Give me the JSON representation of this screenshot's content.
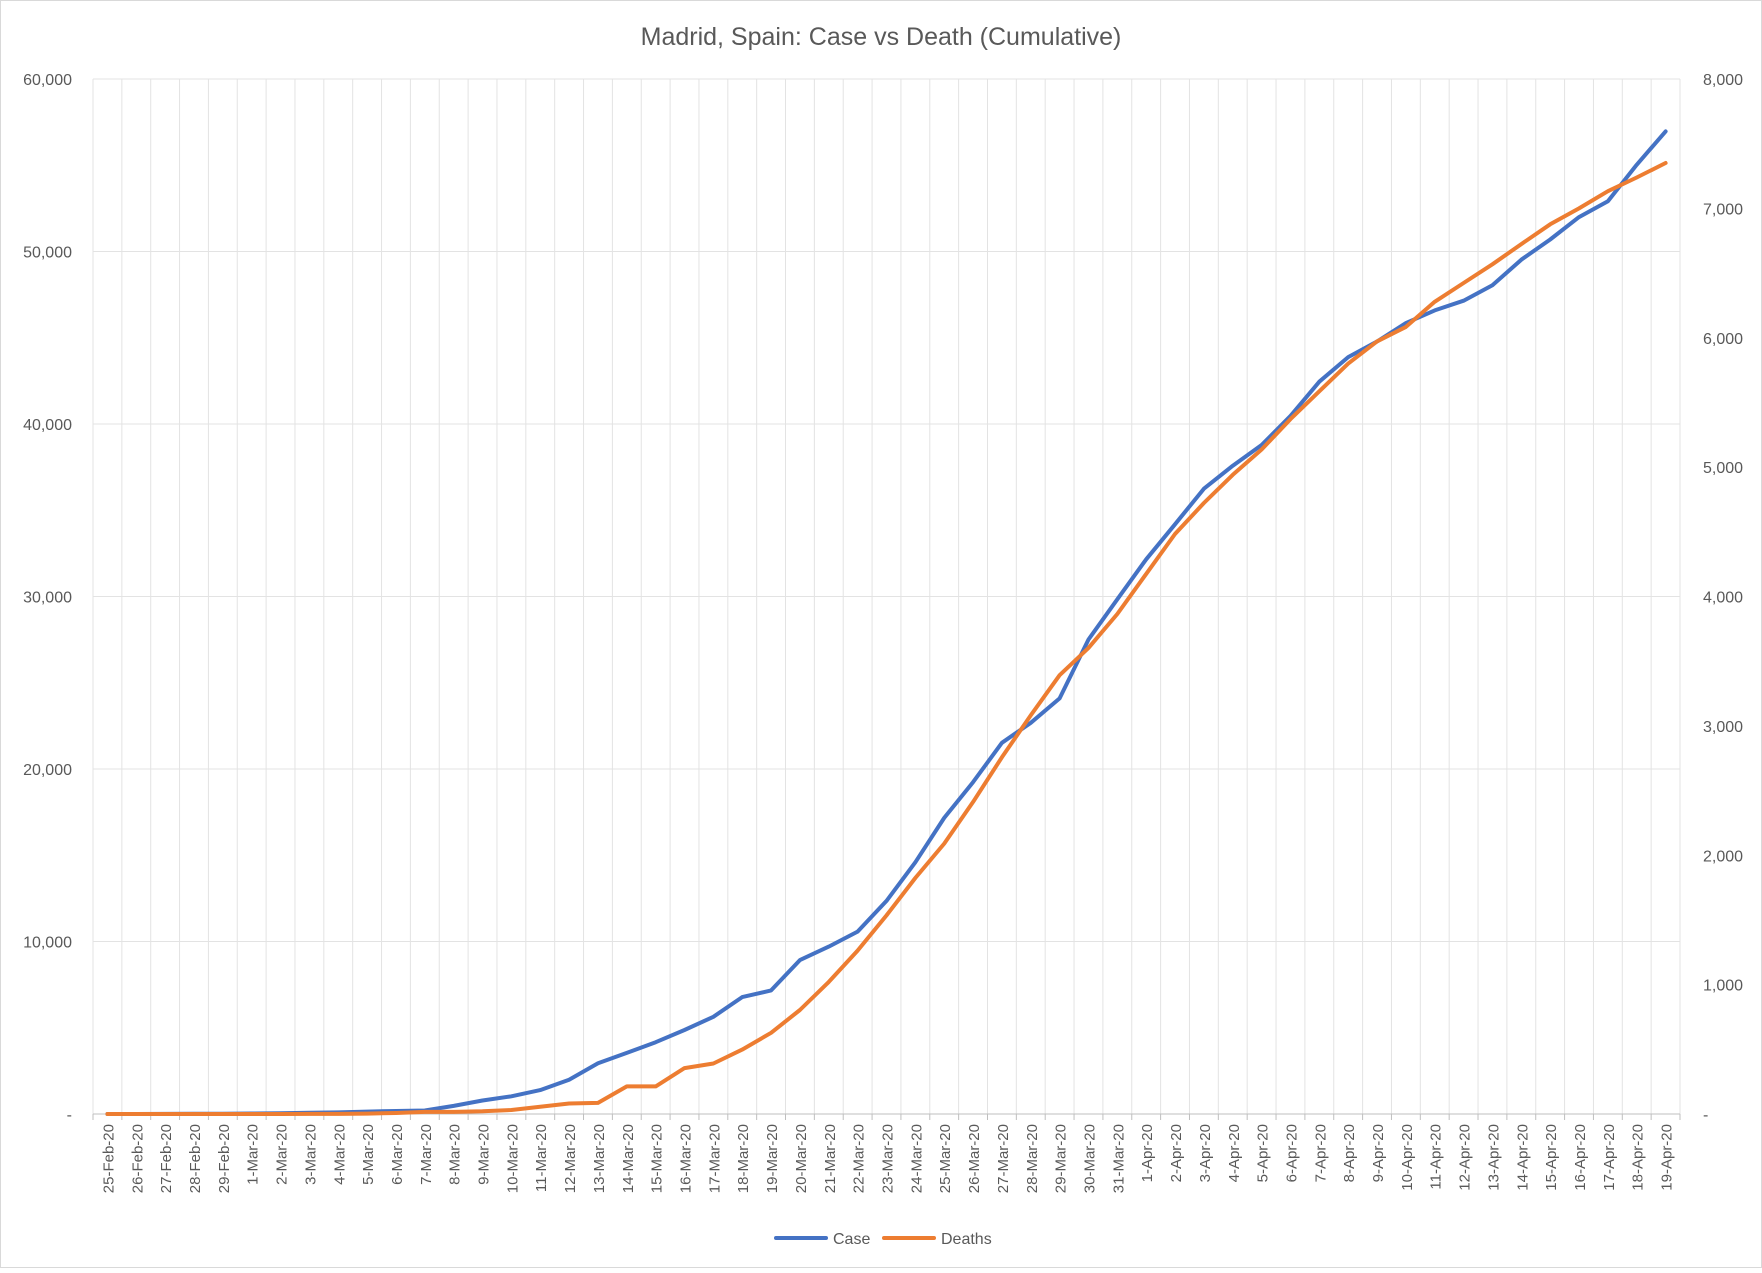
{
  "chart_data": {
    "type": "line",
    "title": "Madrid, Spain: Case vs Death (Cumulative)",
    "categories": [
      "25-Feb-20",
      "26-Feb-20",
      "27-Feb-20",
      "28-Feb-20",
      "29-Feb-20",
      "1-Mar-20",
      "2-Mar-20",
      "3-Mar-20",
      "4-Mar-20",
      "5-Mar-20",
      "6-Mar-20",
      "7-Mar-20",
      "8-Mar-20",
      "9-Mar-20",
      "10-Mar-20",
      "11-Mar-20",
      "12-Mar-20",
      "13-Mar-20",
      "14-Mar-20",
      "15-Mar-20",
      "16-Mar-20",
      "17-Mar-20",
      "18-Mar-20",
      "19-Mar-20",
      "20-Mar-20",
      "21-Mar-20",
      "22-Mar-20",
      "23-Mar-20",
      "24-Mar-20",
      "25-Mar-20",
      "26-Mar-20",
      "27-Mar-20",
      "28-Mar-20",
      "29-Mar-20",
      "30-Mar-20",
      "31-Mar-20",
      "1-Apr-20",
      "2-Apr-20",
      "3-Apr-20",
      "4-Apr-20",
      "5-Apr-20",
      "6-Apr-20",
      "7-Apr-20",
      "8-Apr-20",
      "9-Apr-20",
      "10-Apr-20",
      "11-Apr-20",
      "12-Apr-20",
      "13-Apr-20",
      "14-Apr-20",
      "15-Apr-20",
      "16-Apr-20",
      "17-Apr-20",
      "18-Apr-20",
      "19-Apr-20"
    ],
    "series": [
      {
        "name": "Case",
        "axis": "left",
        "color": "#4472C4",
        "values": [
          1,
          2,
          6,
          10,
          15,
          29,
          49,
          70,
          90,
          137,
          174,
          202,
          469,
          782,
          1024,
          1388,
          1990,
          2940,
          3544,
          4165,
          4871,
          5637,
          6777,
          7165,
          8921,
          9702,
          10575,
          12352,
          14597,
          17166,
          19243,
          21520,
          22677,
          24090,
          27509,
          29840,
          32155,
          34188,
          36249,
          37584,
          38780,
          40469,
          42450,
          43877,
          44783,
          45849,
          46587,
          47146,
          48048,
          49526,
          50694,
          51993,
          52917,
          55028,
          56963
        ]
      },
      {
        "name": "Deaths",
        "axis": "right",
        "color": "#ED7D31",
        "values": [
          0,
          0,
          0,
          0,
          0,
          0,
          0,
          1,
          1,
          3,
          8,
          16,
          16,
          21,
          31,
          56,
          81,
          86,
          213,
          213,
          355,
          390,
          498,
          628,
          804,
          1021,
          1263,
          1535,
          1825,
          2090,
          2412,
          2757,
          3082,
          3392,
          3603,
          3865,
          4175,
          4483,
          4723,
          4941,
          5136,
          5371,
          5586,
          5800,
          5972,
          6084,
          6278,
          6423,
          6568,
          6724,
          6877,
          7000,
          7133,
          7239,
          7351
        ]
      }
    ],
    "y_left": {
      "min": 0,
      "max": 60000,
      "ticks": [
        "-",
        "10,000",
        "20,000",
        "30,000",
        "40,000",
        "50,000",
        "60,000"
      ]
    },
    "y_right": {
      "min": 0,
      "max": 8000,
      "ticks": [
        "-",
        "1,000",
        "2,000",
        "3,000",
        "4,000",
        "5,000",
        "6,000",
        "7,000",
        "8,000"
      ]
    },
    "grid": true,
    "legend_position": "bottom"
  }
}
